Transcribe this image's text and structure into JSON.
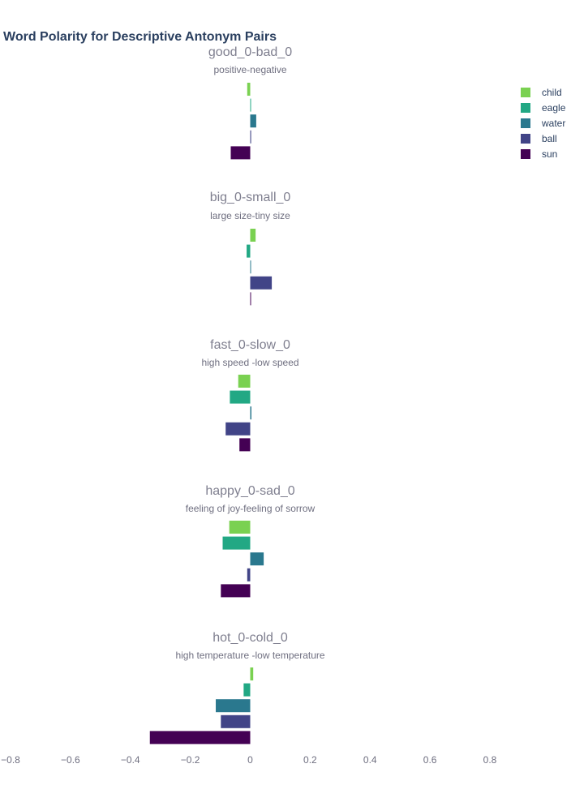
{
  "chart_data": {
    "type": "bar",
    "orientation": "horizontal",
    "title": "Word Polarity for Descriptive Antonym Pairs",
    "xlim": [
      -0.8,
      0.8
    ],
    "x_ticks": [
      "−0.8",
      "−0.6",
      "−0.4",
      "−0.2",
      "0",
      "0.2",
      "0.4",
      "0.6",
      "0.8"
    ],
    "x_tick_values": [
      -0.8,
      -0.6,
      -0.4,
      -0.2,
      0,
      0.2,
      0.4,
      0.6,
      0.8
    ],
    "grid": false,
    "legend_position": "top-right",
    "series": [
      {
        "name": "child",
        "color": "#7ad151"
      },
      {
        "name": "eagle",
        "color": "#22a884"
      },
      {
        "name": "water",
        "color": "#2a788e"
      },
      {
        "name": "ball",
        "color": "#414487"
      },
      {
        "name": "sun",
        "color": "#440154"
      }
    ],
    "panels": [
      {
        "title": "good_0-bad_0",
        "subtitle": "positive-negative",
        "values": {
          "child": -0.01,
          "eagle": 0.002,
          "water": 0.02,
          "ball": 0.003,
          "sun": -0.065
        }
      },
      {
        "title": "big_0-small_0",
        "subtitle": "large size-tiny size",
        "values": {
          "child": 0.018,
          "eagle": -0.012,
          "water": 0.001,
          "ball": 0.072,
          "sun": 0.002
        }
      },
      {
        "title": "fast_0-slow_0",
        "subtitle": "high speed -low speed",
        "values": {
          "child": -0.04,
          "eagle": -0.068,
          "water": 0.004,
          "ball": -0.082,
          "sun": -0.036
        }
      },
      {
        "title": "happy_0-sad_0",
        "subtitle": "feeling of joy-feeling of sorrow",
        "values": {
          "child": -0.07,
          "eagle": -0.092,
          "water": 0.045,
          "ball": -0.01,
          "sun": -0.098
        }
      },
      {
        "title": "hot_0-cold_0",
        "subtitle": "high temperature -low temperature",
        "values": {
          "child": 0.01,
          "eagle": -0.022,
          "water": -0.115,
          "ball": -0.098,
          "sun": -0.335
        }
      }
    ]
  }
}
